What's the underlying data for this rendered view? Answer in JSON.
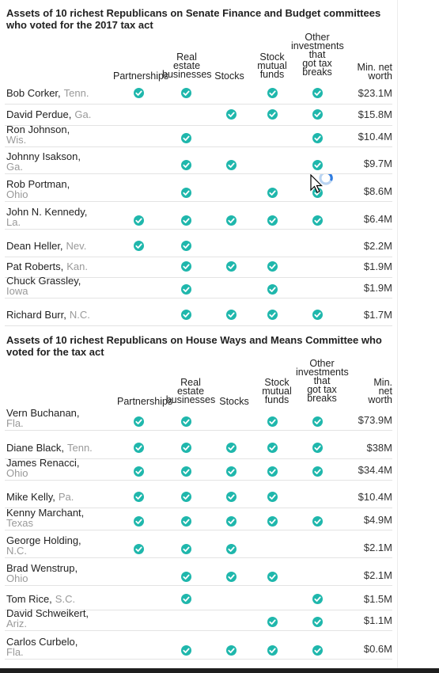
{
  "senate": {
    "title": "Assets of 10 richest Republicans on Senate Finance and Budget committees who voted for the 2017 tax act",
    "columns": [
      "Partnerships",
      "Real\nestate\nbusinesses",
      "Stocks",
      "Stock\nmutual\nfunds",
      "Other\ninvestments\nthat\ngot tax\nbreaks",
      "Min. net\nworth"
    ],
    "rows": [
      {
        "name": "Bob Corker,",
        "state": "Tenn.",
        "two_line": false,
        "checks": [
          true,
          true,
          false,
          true,
          true
        ],
        "worth": "$23.1M"
      },
      {
        "name": "David Perdue,",
        "state": "Ga.",
        "two_line": false,
        "checks": [
          false,
          false,
          true,
          true,
          true
        ],
        "worth": "$15.8M"
      },
      {
        "name": "Ron Johnson,",
        "state": "Wis.",
        "two_line": true,
        "checks": [
          false,
          true,
          false,
          false,
          true
        ],
        "worth": "$10.4M"
      },
      {
        "name": "Johnny Isakson,",
        "state": "Ga.",
        "two_line": true,
        "checks": [
          false,
          true,
          true,
          false,
          true
        ],
        "worth": "$9.7M"
      },
      {
        "name": "Rob Portman,",
        "state": "Ohio",
        "two_line": true,
        "checks": [
          false,
          true,
          false,
          true,
          true
        ],
        "worth": "$8.6M"
      },
      {
        "name": "John N. Kennedy,",
        "state": "La.",
        "two_line": true,
        "checks": [
          true,
          true,
          true,
          true,
          true
        ],
        "worth": "$6.4M"
      },
      {
        "name": "Dean Heller,",
        "state": "Nev.",
        "two_line": false,
        "checks": [
          true,
          true,
          false,
          false,
          false
        ],
        "worth": "$2.2M"
      },
      {
        "name": "Pat Roberts,",
        "state": "Kan.",
        "two_line": false,
        "checks": [
          false,
          true,
          true,
          true,
          false
        ],
        "worth": "$1.9M"
      },
      {
        "name": "Chuck Grassley,",
        "state": "Iowa",
        "two_line": true,
        "checks": [
          false,
          true,
          false,
          true,
          false
        ],
        "worth": "$1.9M"
      },
      {
        "name": "Richard Burr,",
        "state": "N.C.",
        "two_line": false,
        "checks": [
          false,
          true,
          true,
          true,
          true
        ],
        "worth": "$1.7M"
      }
    ]
  },
  "house": {
    "title": "Assets of 10 richest Republicans on House Ways and Means Committee who voted for the tax act",
    "columns": [
      "Partnerships",
      "Real\nestate\nbusinesses",
      "Stocks",
      "Stock\nmutual\nfunds",
      "Other\ninvestments\nthat\ngot tax\nbreaks",
      "Min.\nnet\nworth"
    ],
    "rows": [
      {
        "name": "Vern Buchanan,",
        "state": "Fla.",
        "two_line": true,
        "checks": [
          true,
          true,
          false,
          true,
          true
        ],
        "worth": "$73.9M"
      },
      {
        "name": "Diane Black,",
        "state": "Tenn.",
        "two_line": false,
        "checks": [
          true,
          true,
          true,
          true,
          true
        ],
        "worth": "$38M"
      },
      {
        "name": "James Renacci,",
        "state": "Ohio",
        "two_line": true,
        "checks": [
          true,
          true,
          true,
          true,
          true
        ],
        "worth": "$34.4M"
      },
      {
        "name": "Mike Kelly,",
        "state": "Pa.",
        "two_line": false,
        "checks": [
          true,
          true,
          true,
          true,
          false
        ],
        "worth": "$10.4M"
      },
      {
        "name": "Kenny Marchant,",
        "state": "Texas",
        "two_line": true,
        "checks": [
          true,
          true,
          true,
          true,
          true
        ],
        "worth": "$4.9M"
      },
      {
        "name": "George Holding,",
        "state": "N.C.",
        "two_line": true,
        "checks": [
          true,
          true,
          true,
          false,
          false
        ],
        "worth": "$2.1M"
      },
      {
        "name": "Brad Wenstrup,",
        "state": "Ohio",
        "two_line": true,
        "checks": [
          false,
          true,
          true,
          true,
          false
        ],
        "worth": "$2.1M"
      },
      {
        "name": "Tom Rice,",
        "state": "S.C.",
        "two_line": false,
        "checks": [
          false,
          true,
          false,
          false,
          true
        ],
        "worth": "$1.5M"
      },
      {
        "name": "David Schweikert,",
        "state": "Ariz.",
        "two_line": true,
        "checks": [
          false,
          false,
          false,
          true,
          true
        ],
        "worth": "$1.1M"
      },
      {
        "name": "Carlos Curbelo,",
        "state": "Fla.",
        "two_line": true,
        "checks": [
          false,
          true,
          true,
          true,
          true
        ],
        "worth": "$0.6M"
      }
    ]
  },
  "colors": {
    "check": "#1fb7ac",
    "text": "#222222",
    "state": "#999999",
    "rule": "#e3e3e3"
  },
  "icons": {
    "check": "check-circle-icon",
    "cursor": "mouse-pointer-icon"
  }
}
